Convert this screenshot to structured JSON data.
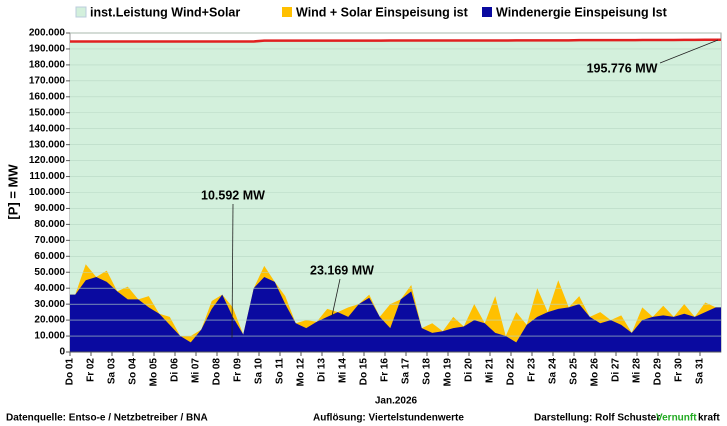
{
  "chart_data": {
    "type": "area",
    "legend": "top",
    "ylabel": "[P] =  MW",
    "xlabel": "Jan.2026",
    "categories": [
      "Do 01",
      null,
      "Fr 02",
      null,
      "Sa 03",
      null,
      "So 04",
      null,
      "Mo 05",
      null,
      "Di 06",
      null,
      "Mi 07",
      null,
      "Do 08",
      null,
      "Fr 09",
      null,
      "Sa 10",
      null,
      "So 11",
      null,
      "Mo 12",
      null,
      "Di 13",
      null,
      "Mi 14",
      null,
      "Do 15",
      null,
      "Fr 16",
      null,
      "Sa 17",
      null,
      "So 18",
      null,
      "Mo 19",
      null,
      "Di 20",
      null,
      "Mi 21",
      null,
      "Do 22",
      null,
      "Fr 23",
      null,
      "Sa 24",
      null,
      "So 25",
      null,
      "Mo 26",
      null,
      "Di 27",
      null,
      "Mi 28",
      null,
      "Do 29",
      null,
      "Fr 30",
      null,
      "Sa 31",
      null
    ],
    "series": [
      {
        "name": "inst.Leistung Wind+Solar",
        "color": "#d3f0dc",
        "line_color": "#e02020",
        "values": [
          194700,
          194700,
          194700,
          194700,
          194700,
          194700,
          194700,
          194700,
          194700,
          194700,
          194700,
          194700,
          194700,
          194700,
          194700,
          194700,
          194700,
          194700,
          195200,
          195200,
          195200,
          195200,
          195200,
          195200,
          195200,
          195200,
          195200,
          195200,
          195200,
          195200,
          195300,
          195300,
          195300,
          195300,
          195300,
          195300,
          195300,
          195300,
          195300,
          195300,
          195300,
          195300,
          195400,
          195400,
          195400,
          195400,
          195400,
          195400,
          195500,
          195500,
          195500,
          195500,
          195500,
          195500,
          195600,
          195600,
          195600,
          195600,
          195700,
          195700,
          195776,
          195776
        ]
      },
      {
        "name": "Wind + Solar Einspeisung ist",
        "color": "#ffc000",
        "values": [
          36000,
          55000,
          47000,
          51000,
          38000,
          41000,
          33000,
          35000,
          24000,
          22000,
          10000,
          10000,
          14000,
          32000,
          36000,
          28000,
          11000,
          40000,
          54000,
          44000,
          35000,
          18000,
          20000,
          19000,
          27000,
          25000,
          28000,
          30000,
          36000,
          22000,
          30000,
          33000,
          42000,
          15000,
          18000,
          13000,
          22000,
          16000,
          30000,
          18000,
          35000,
          10000,
          25000,
          17000,
          40000,
          25000,
          45000,
          28000,
          35000,
          22000,
          25000,
          20000,
          23000,
          12000,
          28000,
          22000,
          29000,
          22000,
          30000,
          22000,
          31000,
          28000
        ]
      },
      {
        "name": "Windenergie Einspeisung Ist",
        "color": "#0a0aa0",
        "values": [
          36000,
          45000,
          47000,
          44000,
          38000,
          33000,
          33000,
          28000,
          24000,
          17000,
          10000,
          6000,
          14000,
          27000,
          36000,
          22000,
          11000,
          40000,
          47000,
          44000,
          30000,
          18000,
          15000,
          19000,
          22000,
          25000,
          22000,
          30000,
          34000,
          22000,
          15000,
          33000,
          38000,
          15000,
          12000,
          13000,
          15000,
          16000,
          20000,
          18000,
          12000,
          10000,
          6000,
          17000,
          22000,
          25000,
          27000,
          28000,
          30000,
          22000,
          18000,
          20000,
          17000,
          12000,
          20000,
          22000,
          23000,
          22000,
          24000,
          22000,
          25000,
          28000
        ]
      }
    ],
    "ylim": [
      0,
      200000
    ],
    "yticks": [
      0,
      {
        "value": 10000,
        "label": "10.000"
      },
      {
        "value": 20000,
        "label": "20.000"
      },
      {
        "value": 30000,
        "label": "30.000"
      },
      {
        "value": 40000,
        "label": "40.000"
      },
      {
        "value": 50000,
        "label": "50.000"
      },
      {
        "value": 60000,
        "label": "60.000"
      },
      {
        "value": 70000,
        "label": "70.000"
      },
      {
        "value": 80000,
        "label": "80.000"
      },
      {
        "value": 90000,
        "label": "90.000"
      },
      {
        "value": 100000,
        "label": "100.000"
      },
      {
        "value": 110000,
        "label": "110.000"
      },
      {
        "value": 120000,
        "label": "120.000"
      },
      {
        "value": 130000,
        "label": "130.000"
      },
      {
        "value": 140000,
        "label": "140.000"
      },
      {
        "value": 150000,
        "label": "150.000"
      },
      {
        "value": 160000,
        "label": "160.000"
      },
      {
        "value": 170000,
        "label": "170.000"
      },
      {
        "value": 180000,
        "label": "180.000"
      },
      {
        "value": 190000,
        "label": "190.000"
      },
      {
        "value": 200000,
        "label": "200.000"
      }
    ],
    "grid": true,
    "annotations": [
      {
        "text": "10.592 MW"
      },
      {
        "text": "23.169 MW"
      },
      {
        "text": "195.776 MW"
      }
    ],
    "footer": {
      "source": "Datenquelle: Entso-e  / Netzbetreiber / BNA",
      "resolution": "Auflösung: Viertelstundenwerte",
      "author": "Darstellung: Rolf Schuster",
      "brand_a": "Vernunft",
      "brand_b": "kraft"
    }
  }
}
